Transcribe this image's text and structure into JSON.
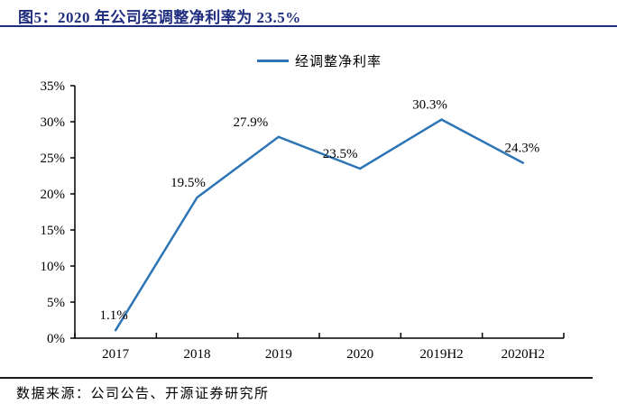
{
  "header": {
    "title": "图5：2020 年公司经调整净利率为 23.5%"
  },
  "legend": {
    "label": "经调整净利率"
  },
  "chart_data": {
    "type": "line",
    "categories": [
      "2017",
      "2018",
      "2019",
      "2020",
      "2019H2",
      "2020H2"
    ],
    "series": [
      {
        "name": "经调整净利率",
        "values": [
          1.1,
          19.5,
          27.9,
          23.5,
          30.3,
          24.3
        ],
        "color": "#2E75B6"
      }
    ],
    "data_labels": [
      "1.1%",
      "19.5%",
      "27.9%",
      "23.5%",
      "30.3%",
      "24.3%"
    ],
    "title": "",
    "xlabel": "",
    "ylabel": "",
    "ylim": [
      0,
      35
    ],
    "ytick_interval": 5,
    "ytick_labels": [
      "0%",
      "5%",
      "10%",
      "15%",
      "20%",
      "25%",
      "30%",
      "35%"
    ],
    "grid": false,
    "legend_position": "top-center",
    "label_dx": [
      -2,
      -10,
      -31,
      -22,
      -13,
      -1
    ]
  },
  "footer": {
    "source": "数据来源：公司公告、开源证券研究所"
  },
  "colors": {
    "title_navy": "#1F2D7E",
    "line_blue": "#2E75B6",
    "axis_black": "#000000"
  }
}
